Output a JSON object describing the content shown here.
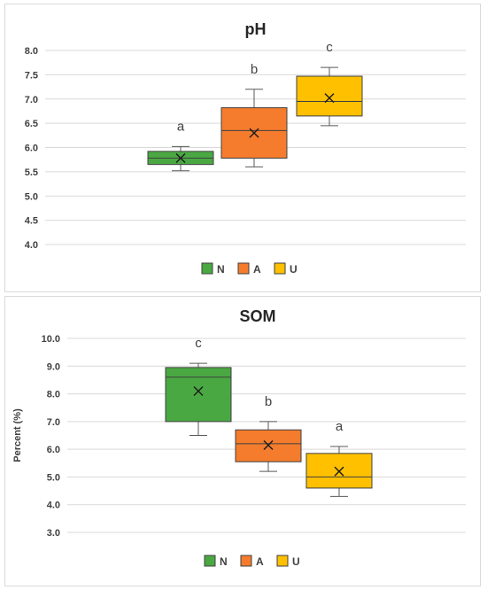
{
  "chart_data": [
    {
      "type": "box",
      "title": "pH",
      "ylabel": "",
      "ylim": [
        4.0,
        8.0
      ],
      "yticks": [
        "8.0",
        "7.5",
        "7.0",
        "6.5",
        "6.0",
        "5.5",
        "5.0",
        "4.5",
        "4.0"
      ],
      "grid": true,
      "legend": "bottom",
      "series": [
        {
          "name": "N",
          "color": "#4aa842",
          "min": 5.52,
          "q1": 5.65,
          "median": 5.78,
          "q3": 5.92,
          "max": 6.02,
          "mean": 5.78,
          "label": "a"
        },
        {
          "name": "A",
          "color": "#f47c2c",
          "min": 5.6,
          "q1": 5.78,
          "median": 6.35,
          "q3": 6.82,
          "max": 7.2,
          "mean": 6.3,
          "label": "b"
        },
        {
          "name": "U",
          "color": "#ffc000",
          "min": 6.45,
          "q1": 6.65,
          "median": 6.95,
          "q3": 7.47,
          "max": 7.65,
          "mean": 7.02,
          "label": "c"
        }
      ]
    },
    {
      "type": "box",
      "title": "SOM",
      "ylabel": "Percent (%)",
      "ylim": [
        3.0,
        10.0
      ],
      "yticks": [
        "10.0",
        "9.0",
        "8.0",
        "7.0",
        "6.0",
        "5.0",
        "4.0",
        "3.0"
      ],
      "grid": true,
      "legend": "bottom",
      "series": [
        {
          "name": "N",
          "color": "#4aa842",
          "min": 6.5,
          "q1": 7.0,
          "median": 8.6,
          "q3": 8.95,
          "max": 9.1,
          "mean": 8.1,
          "label": "c"
        },
        {
          "name": "A",
          "color": "#f47c2c",
          "min": 5.2,
          "q1": 5.55,
          "median": 6.2,
          "q3": 6.7,
          "max": 7.0,
          "mean": 6.15,
          "label": "b"
        },
        {
          "name": "U",
          "color": "#ffc000",
          "min": 4.3,
          "q1": 4.6,
          "median": 5.0,
          "q3": 5.85,
          "max": 6.1,
          "mean": 5.2,
          "label": "a"
        }
      ]
    }
  ]
}
